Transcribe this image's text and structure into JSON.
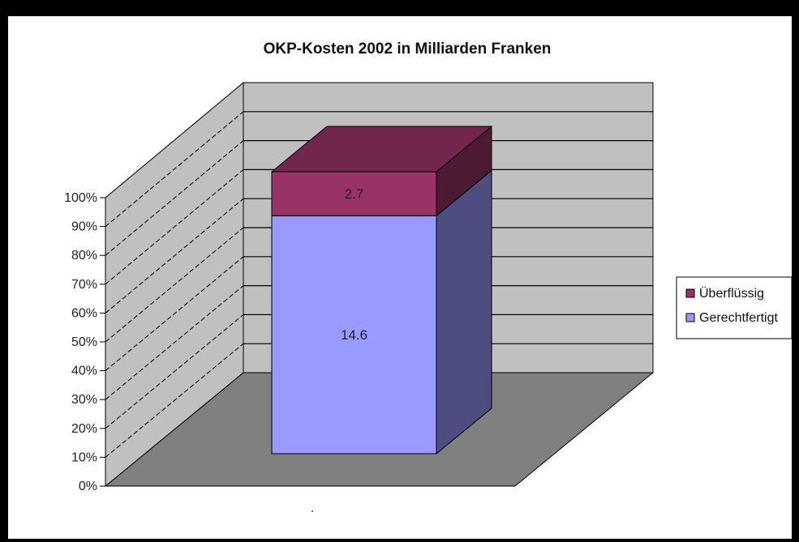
{
  "chart_data": {
    "type": "bar",
    "stacked": true,
    "percent": true,
    "three_d": true,
    "title": "OKP-Kosten 2002 in Milliarden Franken",
    "categories": [
      "."
    ],
    "series": [
      {
        "name": "Gerechtfertigt",
        "values": [
          14.6
        ],
        "color": "#9999ff",
        "label": "14.6"
      },
      {
        "name": "Überflüssig",
        "values": [
          2.7
        ],
        "color": "#993366",
        "label": "2.7"
      }
    ],
    "y_ticks": [
      "0%",
      "10%",
      "20%",
      "30%",
      "40%",
      "50%",
      "60%",
      "70%",
      "80%",
      "90%",
      "100%"
    ],
    "ylim": [
      0,
      100
    ],
    "legend_placement": "right",
    "grid": true,
    "colors": {
      "wall": "#c0c0c0",
      "floor": "#808080"
    }
  }
}
